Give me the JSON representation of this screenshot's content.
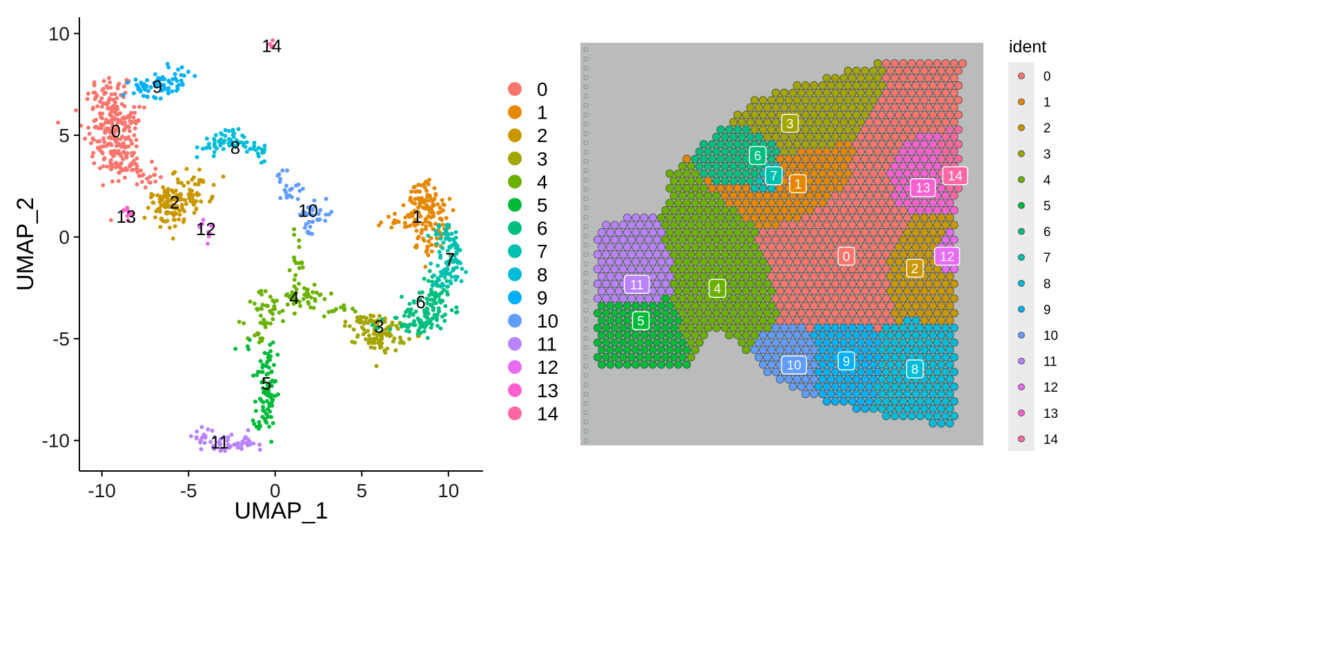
{
  "chart_data": [
    {
      "type": "scatter",
      "title": "",
      "xlabel": "UMAP_1",
      "ylabel": "UMAP_2",
      "xlim": [
        -11.3,
        12
      ],
      "ylim": [
        -11.5,
        10.8
      ],
      "xticks": [
        -10,
        -5,
        0,
        5,
        10
      ],
      "yticks": [
        -10,
        -5,
        0,
        5,
        10
      ],
      "grid": false,
      "legend_placement": "right",
      "series": [
        {
          "name": "0",
          "color": "#F8766D",
          "blobs": [
            [
              -9.5,
              6.8,
              0.7,
              0.6,
              60
            ],
            [
              -9.7,
              5.2,
              0.7,
              0.9,
              90
            ],
            [
              -8.7,
              4.6,
              0.5,
              0.9,
              50
            ],
            [
              -9.0,
              3.7,
              0.6,
              0.5,
              40
            ],
            [
              -7.8,
              3.0,
              0.5,
              0.3,
              25
            ],
            [
              -8.3,
              5.8,
              0.3,
              0.6,
              20
            ]
          ],
          "label_at": [
            -9.2,
            5.2
          ]
        },
        {
          "name": "1",
          "color": "#E58700",
          "blobs": [
            [
              8.8,
              1.8,
              0.4,
              0.5,
              40
            ],
            [
              9.1,
              0.9,
              0.5,
              0.5,
              50
            ],
            [
              7.5,
              0.8,
              0.8,
              0.3,
              30
            ],
            [
              9.0,
              -0.3,
              0.4,
              0.5,
              25
            ],
            [
              8.2,
              2.2,
              0.3,
              0.2,
              15
            ]
          ],
          "label_at": [
            8.2,
            1.0
          ]
        },
        {
          "name": "2",
          "color": "#C99800",
          "blobs": [
            [
              -5.9,
              1.3,
              0.7,
              0.5,
              70
            ],
            [
              -4.8,
              2.3,
              0.6,
              0.5,
              50
            ],
            [
              -6.7,
              2.0,
              0.3,
              0.3,
              15
            ]
          ],
          "label_at": [
            -5.8,
            1.7
          ]
        },
        {
          "name": "3",
          "color": "#A3A500",
          "blobs": [
            [
              6.2,
              -4.8,
              0.7,
              0.4,
              80
            ],
            [
              5.0,
              -4.2,
              0.5,
              0.2,
              25
            ]
          ],
          "label_at": [
            6.0,
            -4.4
          ]
        },
        {
          "name": "4",
          "color": "#6BB100",
          "blobs": [
            [
              1.6,
              -3.0,
              0.9,
              0.3,
              40
            ],
            [
              -0.4,
              -3.4,
              0.8,
              0.4,
              30
            ],
            [
              1.3,
              -1.3,
              0.2,
              0.7,
              18
            ],
            [
              -0.6,
              -4.3,
              0.2,
              0.4,
              10
            ],
            [
              3.5,
              -3.6,
              0.5,
              0.1,
              10
            ],
            [
              -1.0,
              -5.0,
              0.4,
              0.2,
              8
            ]
          ],
          "label_at": [
            1.1,
            -3.0
          ]
        },
        {
          "name": "5",
          "color": "#00BA38",
          "blobs": [
            [
              -0.5,
              -7.7,
              0.3,
              0.9,
              60
            ],
            [
              -0.3,
              -6.1,
              0.2,
              0.5,
              20
            ],
            [
              -0.9,
              -9.0,
              0.2,
              0.4,
              10
            ],
            [
              -1.8,
              -5.4,
              0.2,
              0.1,
              4
            ]
          ],
          "label_at": [
            -0.5,
            -7.2
          ]
        },
        {
          "name": "6",
          "color": "#00BF7D",
          "blobs": [
            [
              8.9,
              -3.6,
              0.7,
              0.5,
              70
            ],
            [
              7.8,
              -4.4,
              0.7,
              0.3,
              35
            ],
            [
              9.4,
              -2.5,
              0.4,
              0.4,
              25
            ]
          ],
          "label_at": [
            8.4,
            -3.2
          ]
        },
        {
          "name": "7",
          "color": "#00C0AF",
          "blobs": [
            [
              10.2,
              -1.2,
              0.5,
              0.6,
              60
            ],
            [
              9.9,
              0.1,
              0.4,
              0.3,
              25
            ],
            [
              9.6,
              -2.1,
              0.3,
              0.3,
              15
            ]
          ],
          "label_at": [
            10.1,
            -1.1
          ]
        },
        {
          "name": "8",
          "color": "#00BCD8",
          "blobs": [
            [
              -2.7,
              4.9,
              0.5,
              0.3,
              30
            ],
            [
              -1.6,
              4.6,
              0.4,
              0.2,
              15
            ],
            [
              -3.7,
              4.4,
              0.4,
              0.2,
              15
            ],
            [
              -0.9,
              4.2,
              0.3,
              0.3,
              10
            ]
          ],
          "label_at": [
            -2.3,
            4.4
          ]
        },
        {
          "name": "9",
          "color": "#00B0F6",
          "blobs": [
            [
              -6.8,
              7.5,
              0.7,
              0.3,
              40
            ],
            [
              -5.6,
              7.7,
              0.3,
              0.5,
              20
            ],
            [
              -7.8,
              7.4,
              0.3,
              0.2,
              15
            ]
          ],
          "label_at": [
            -6.8,
            7.4
          ]
        },
        {
          "name": "10",
          "color": "#619CFF",
          "blobs": [
            [
              2.4,
              1.1,
              0.5,
              0.3,
              25
            ],
            [
              1.0,
              2.4,
              0.4,
              0.2,
              15
            ],
            [
              2.0,
              0.2,
              0.2,
              0.2,
              8
            ],
            [
              0.3,
              3.0,
              0.2,
              0.2,
              6
            ]
          ],
          "label_at": [
            1.9,
            1.3
          ]
        },
        {
          "name": "11",
          "color": "#B983FF",
          "blobs": [
            [
              -2.7,
              -10.2,
              0.8,
              0.2,
              35
            ],
            [
              -4.3,
              -9.8,
              0.4,
              0.2,
              15
            ],
            [
              -1.6,
              -10.0,
              0.2,
              0.2,
              6
            ]
          ],
          "label_at": [
            -3.2,
            -10.1
          ]
        },
        {
          "name": "12",
          "color": "#E76BF3",
          "blobs": [
            [
              -3.9,
              0.3,
              0.2,
              0.3,
              8
            ]
          ],
          "label_at": [
            -4.0,
            0.4
          ]
        },
        {
          "name": "13",
          "color": "#FD61D1",
          "blobs": [
            [
              -8.5,
              1.2,
              0.2,
              0.2,
              8
            ]
          ],
          "label_at": [
            -8.6,
            1.0
          ]
        },
        {
          "name": "14",
          "color": "#FF67A4",
          "blobs": [
            [
              -0.2,
              9.5,
              0.1,
              0.1,
              5
            ]
          ],
          "label_at": [
            -0.2,
            9.4
          ]
        }
      ]
    },
    {
      "type": "heatmap",
      "title": "",
      "legend_title": "ident",
      "legend_placement": "right",
      "categories": [
        "0",
        "1",
        "2",
        "3",
        "4",
        "5",
        "6",
        "7",
        "8",
        "9",
        "10",
        "11",
        "12",
        "13",
        "14"
      ],
      "colors": [
        "#F8766D",
        "#E58700",
        "#C99800",
        "#A3A500",
        "#6BB100",
        "#00BA38",
        "#00BF7D",
        "#00C0AF",
        "#00BCD8",
        "#00B0F6",
        "#619CFF",
        "#B983FF",
        "#E76BF3",
        "#FD61D1",
        "#FF67A4"
      ],
      "cluster_label_positions": [
        [
          0.66,
          0.53
        ],
        [
          0.54,
          0.35
        ],
        [
          0.83,
          0.56
        ],
        [
          0.52,
          0.2
        ],
        [
          0.34,
          0.61
        ],
        [
          0.15,
          0.69
        ],
        [
          0.44,
          0.28
        ],
        [
          0.48,
          0.33
        ],
        [
          0.83,
          0.81
        ],
        [
          0.66,
          0.79
        ],
        [
          0.53,
          0.8
        ],
        [
          0.14,
          0.6
        ],
        [
          0.91,
          0.53
        ],
        [
          0.85,
          0.36
        ],
        [
          0.93,
          0.33
        ]
      ],
      "tissue_background": "#b9bcbb"
    }
  ]
}
